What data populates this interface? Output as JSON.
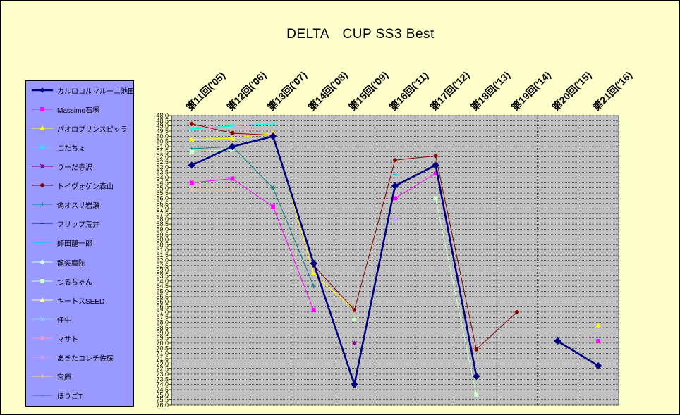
{
  "chart_data": {
    "type": "line",
    "title": "DELTA　CUP SS3 Best",
    "xlabel": "",
    "ylabel": "",
    "categories": [
      "第11回('05)",
      "第12回('06)",
      "第13回('07)",
      "第14回('08)",
      "第15回('09)",
      "第16回('11)",
      "第17回('12)",
      "第18回('13)",
      "第19回('14)",
      "第20回('15)",
      "第21回('16)"
    ],
    "ylim": [
      48.0,
      76.0
    ],
    "y_reversed": true,
    "y_tick_step": 0.5,
    "y_tick_decimals": 1,
    "grid": true,
    "legend_position": "left",
    "plot_background": "#c0c0c0",
    "series": [
      {
        "name": "カルロコルマルーニ池田",
        "color": "#000080",
        "marker": "diamond",
        "width": 2.6,
        "values": [
          52.8,
          51.0,
          50.0,
          62.3,
          74.0,
          54.8,
          52.8,
          73.2,
          null,
          69.8,
          72.2
        ]
      },
      {
        "name": "Massimo石塚",
        "color": "#ff00ff",
        "marker": "square",
        "width": 1,
        "values": [
          54.5,
          54.1,
          56.8,
          66.8,
          null,
          56.0,
          53.6,
          null,
          null,
          null,
          69.8
        ]
      },
      {
        "name": "パオロプリンスピッラ",
        "color": "#ffff00",
        "marker": "triangle",
        "width": 1,
        "values": [
          50.3,
          50.2,
          49.7,
          63.3,
          66.8,
          null,
          null,
          null,
          null,
          null,
          68.3
        ]
      },
      {
        "name": "こたちょ",
        "color": "#00ffff",
        "marker": "x",
        "width": 1,
        "values": [
          49.3,
          49.0,
          48.8,
          null,
          null,
          null,
          null,
          null,
          null,
          null,
          null
        ]
      },
      {
        "name": "りーだ寺沢",
        "color": "#800080",
        "marker": "star",
        "width": 1,
        "values": [
          null,
          null,
          null,
          null,
          70.0,
          null,
          null,
          null,
          null,
          null,
          null
        ]
      },
      {
        "name": "トイヴォゲン森山",
        "color": "#800000",
        "marker": "circle",
        "width": 1,
        "values": [
          48.8,
          49.7,
          49.9,
          62.5,
          66.8,
          52.3,
          51.9,
          70.6,
          67.0,
          null,
          null
        ]
      },
      {
        "name": "偽オスリ岩瀬",
        "color": "#008080",
        "marker": "plus",
        "width": 1,
        "values": [
          51.2,
          51.0,
          55.0,
          64.5,
          null,
          null,
          null,
          null,
          null,
          null,
          null
        ]
      },
      {
        "name": "フリップ荒井",
        "color": "#0000ff",
        "marker": "dash",
        "width": 1,
        "values": [
          null,
          null,
          null,
          null,
          null,
          null,
          null,
          null,
          null,
          null,
          null
        ]
      },
      {
        "name": "師田龍一郎",
        "color": "#00ccff",
        "marker": "dash",
        "width": 1,
        "values": [
          null,
          null,
          null,
          null,
          null,
          53.7,
          null,
          null,
          null,
          null,
          null
        ]
      },
      {
        "name": "龍矢魔陀",
        "color": "#ccffff",
        "marker": "diamond",
        "width": 1,
        "values": [
          null,
          null,
          null,
          null,
          null,
          null,
          null,
          null,
          null,
          null,
          null
        ]
      },
      {
        "name": "つるちゃん",
        "color": "#ccffcc",
        "marker": "square",
        "width": 1,
        "values": [
          51.5,
          51.3,
          null,
          null,
          67.7,
          null,
          56.0,
          75.0,
          null,
          null,
          null
        ]
      },
      {
        "name": "キートスSEED",
        "color": "#ffff99",
        "marker": "triangle",
        "width": 1,
        "values": [
          null,
          null,
          null,
          null,
          null,
          null,
          null,
          null,
          null,
          null,
          null
        ]
      },
      {
        "name": "仔牛",
        "color": "#99ccff",
        "marker": "x",
        "width": 1,
        "values": [
          null,
          null,
          null,
          null,
          null,
          null,
          null,
          null,
          null,
          null,
          null
        ]
      },
      {
        "name": "マサト",
        "color": "#ff99cc",
        "marker": "star",
        "width": 1,
        "values": [
          null,
          null,
          null,
          null,
          null,
          null,
          null,
          null,
          null,
          null,
          null
        ]
      },
      {
        "name": "あきたコレチ佐藤",
        "color": "#cc99ff",
        "marker": "circle",
        "width": 1,
        "values": [
          null,
          null,
          null,
          null,
          null,
          58.0,
          null,
          null,
          null,
          null,
          null
        ]
      },
      {
        "name": "宮原",
        "color": "#ffcc99",
        "marker": "plus",
        "width": 1,
        "values": [
          55.2,
          55.2,
          null,
          null,
          null,
          null,
          null,
          null,
          null,
          null,
          null
        ]
      },
      {
        "name": "ほりごT",
        "color": "#3366ff",
        "marker": "dash",
        "width": 1,
        "values": [
          null,
          null,
          null,
          null,
          null,
          null,
          null,
          null,
          null,
          null,
          null
        ]
      }
    ]
  }
}
